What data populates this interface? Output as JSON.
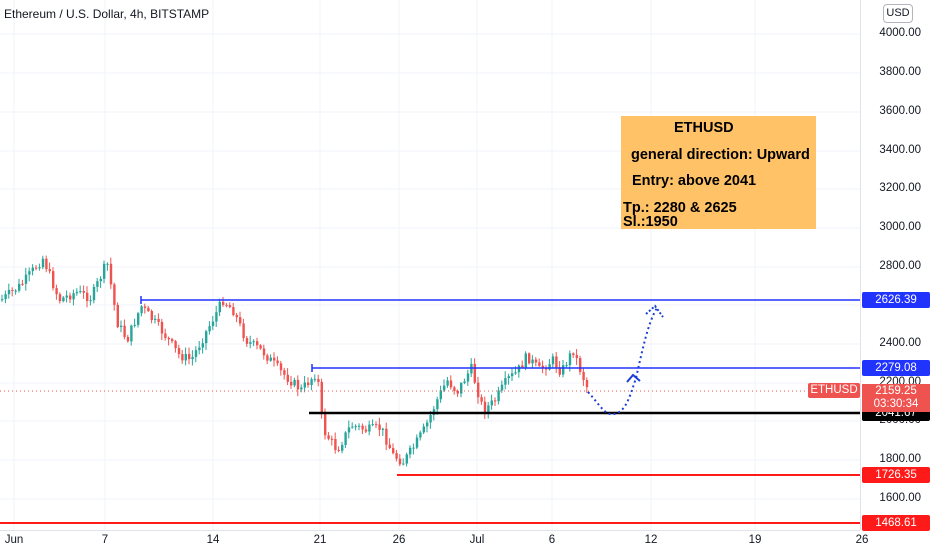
{
  "header": {
    "title": "Ethereum / U.S. Dollar, 4h, BITSTAMP"
  },
  "currency_button": "USD",
  "price_axis": {
    "ticks": [
      "4000.00",
      "3800.00",
      "3600.00",
      "3400.00",
      "3200.00",
      "3000.00",
      "2800.00",
      "2600.00",
      "2400.00",
      "2200.00",
      "2000.00",
      "1800.00",
      "1600.00"
    ]
  },
  "time_axis": {
    "ticks": [
      "Jun",
      "7",
      "14",
      "21",
      "26",
      "Jul",
      "6",
      "12",
      "19",
      "26"
    ]
  },
  "annotation": {
    "symbol": "ETHUSD",
    "direction": "general direction: Upward",
    "entry": "Entry: above 2041",
    "tp": "Tp.: 2280 & 2625",
    "sl": "Sl.:1950"
  },
  "levels": [
    {
      "label": "2626.39",
      "color": "#2133ff"
    },
    {
      "label": "2279.08",
      "color": "#2133ff"
    },
    {
      "label": "2041.67",
      "color": "#000000"
    },
    {
      "label": "1726.35",
      "color": "#ff1a1a"
    },
    {
      "label": "1468.61",
      "color": "#ff1a1a"
    }
  ],
  "current": {
    "symbol_tag": "ETHUSD",
    "price": "2159.25",
    "countdown": "03:30:34",
    "color": "#ef5350"
  },
  "colors": {
    "up": "#26a69a",
    "down": "#ef5350"
  }
}
